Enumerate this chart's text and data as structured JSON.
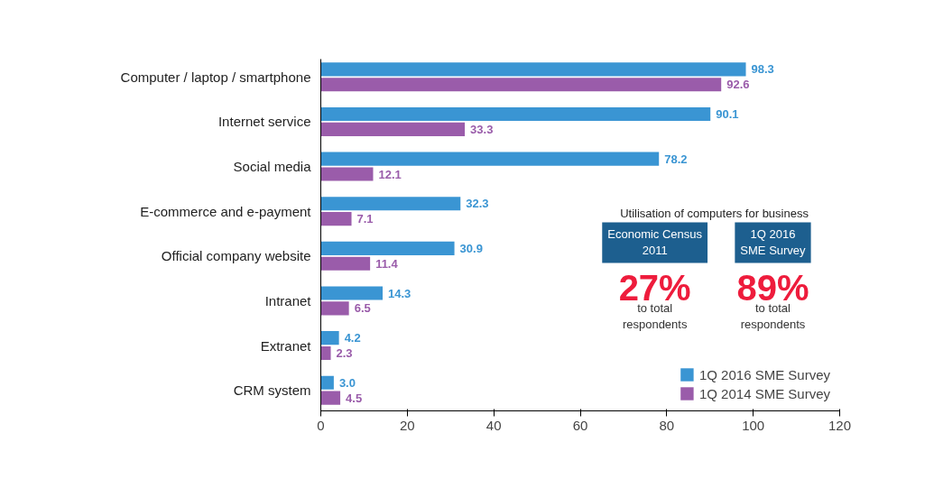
{
  "chart_data": {
    "type": "bar",
    "orientation": "horizontal",
    "categories": [
      "Computer / laptop / smartphone",
      "Internet service",
      "Social media",
      "E-commerce and e-payment",
      "Official company website",
      "Intranet",
      "Extranet",
      "CRM system"
    ],
    "series": [
      {
        "name": "1Q 2016 SME Survey",
        "color": "#3a95d3",
        "values": [
          98.3,
          90.1,
          78.2,
          32.3,
          30.9,
          14.3,
          4.2,
          3.0
        ],
        "value_labels": [
          "98.3",
          "90.1",
          "78.2",
          "32.3",
          "30.9",
          "14.3",
          "4.2",
          "3.0"
        ]
      },
      {
        "name": "1Q 2014 SME Survey",
        "color": "#9a5caa",
        "values": [
          92.6,
          33.3,
          12.1,
          7.1,
          11.4,
          6.5,
          2.3,
          4.5
        ],
        "value_labels": [
          "92.6",
          "33.3",
          "12.1",
          "7.1",
          "11.4",
          "6.5",
          "2.3",
          "4.5"
        ]
      }
    ],
    "xlim": [
      0,
      120
    ],
    "xticks": [
      0,
      20,
      40,
      60,
      80,
      100,
      120
    ],
    "legend": "bottom right",
    "grid": false,
    "annotations": [
      "Utilisation of computers for business",
      "Economic Census 2011",
      "1Q 2016 SME Survey",
      "27%",
      "to total respondents",
      "89%",
      "to total respondents"
    ]
  }
}
